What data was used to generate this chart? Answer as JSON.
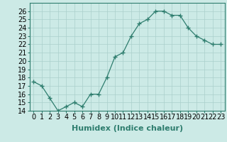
{
  "x": [
    0,
    1,
    2,
    3,
    4,
    5,
    6,
    7,
    8,
    9,
    10,
    11,
    12,
    13,
    14,
    15,
    16,
    17,
    18,
    19,
    20,
    21,
    22,
    23
  ],
  "y": [
    17.5,
    17.0,
    15.5,
    14.0,
    14.5,
    15.0,
    14.5,
    16.0,
    16.0,
    18.0,
    20.5,
    21.0,
    23.0,
    24.5,
    25.0,
    26.0,
    26.0,
    25.5,
    25.5,
    24.0,
    23.0,
    22.5,
    22.0,
    22.0
  ],
  "line_color": "#2e7d6e",
  "marker": "+",
  "marker_size": 4,
  "bg_color": "#cceae6",
  "grid_color": "#aacfcb",
  "xlabel": "Humidex (Indice chaleur)",
  "ylim": [
    14,
    27
  ],
  "xlim": [
    -0.5,
    23.5
  ],
  "yticks": [
    14,
    15,
    16,
    17,
    18,
    19,
    20,
    21,
    22,
    23,
    24,
    25,
    26
  ],
  "xticks": [
    0,
    1,
    2,
    3,
    4,
    5,
    6,
    7,
    8,
    9,
    10,
    11,
    12,
    13,
    14,
    15,
    16,
    17,
    18,
    19,
    20,
    21,
    22,
    23
  ],
  "xlabel_fontsize": 8,
  "tick_fontsize": 7,
  "lw": 0.9
}
